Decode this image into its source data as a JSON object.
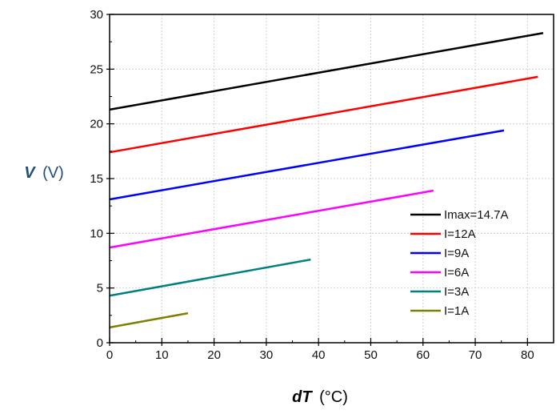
{
  "chart_data": {
    "type": "line",
    "title": "",
    "xlabel": {
      "symbol": "dT",
      "unit": "(°C)"
    },
    "ylabel": {
      "symbol": "V",
      "unit": "(V)"
    },
    "xlim": [
      0,
      85
    ],
    "ylim": [
      0,
      30
    ],
    "xticks": [
      0,
      10,
      20,
      30,
      40,
      50,
      60,
      70,
      80
    ],
    "yticks": [
      0,
      5,
      10,
      15,
      20,
      25,
      30
    ],
    "grid": true,
    "legend": "bottom-right",
    "series": [
      {
        "name": "Imax=14.7A",
        "color": "#000000",
        "x": [
          0,
          83
        ],
        "y": [
          21.3,
          28.3
        ]
      },
      {
        "name": "I=12A",
        "color": "#ff0000",
        "x": [
          0,
          82
        ],
        "y": [
          17.4,
          24.3
        ]
      },
      {
        "name": "I=9A",
        "color": "#0000ff",
        "x": [
          0,
          75.5
        ],
        "y": [
          13.1,
          19.4
        ]
      },
      {
        "name": "I=6A",
        "color": "#ff00ff",
        "x": [
          0,
          62
        ],
        "y": [
          8.7,
          13.9
        ]
      },
      {
        "name": "I=3A",
        "color": "#008080",
        "x": [
          0,
          38.5
        ],
        "y": [
          4.3,
          7.6
        ]
      },
      {
        "name": "I=1A",
        "color": "#808000",
        "x": [
          0,
          15
        ],
        "y": [
          1.4,
          2.7
        ]
      }
    ]
  }
}
